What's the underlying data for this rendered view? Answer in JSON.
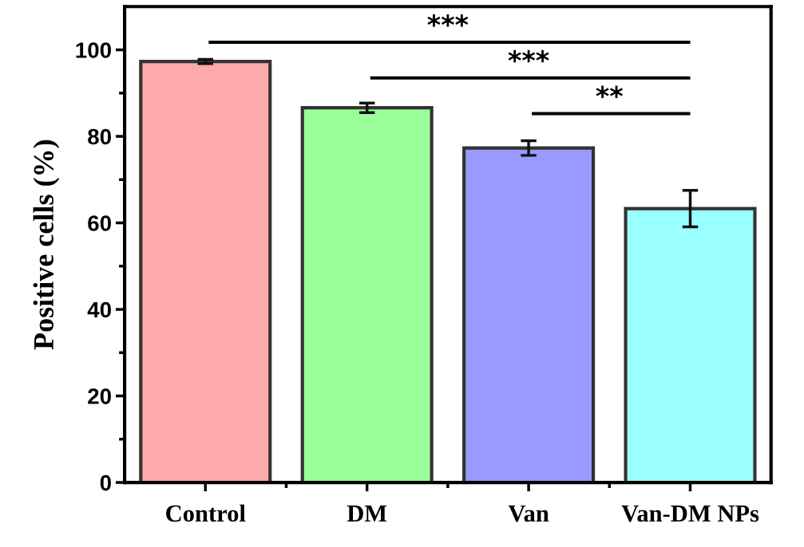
{
  "chart_data": {
    "type": "bar",
    "ylabel": "Positive cells (%)",
    "categories": [
      "Control",
      "DM",
      "Van",
      "Van-DM NPs"
    ],
    "values": [
      97.3,
      86.6,
      77.3,
      63.3
    ],
    "errors": [
      0.5,
      1.1,
      1.7,
      4.2
    ],
    "colors": [
      "#ffaaaa",
      "#99ff99",
      "#9999ff",
      "#99ffff"
    ],
    "ylim": [
      0,
      110
    ],
    "yticks": [
      0,
      {
        "value": 10,
        "label": null
      },
      20,
      {
        "value": 30,
        "label": null
      },
      40,
      {
        "value": 50,
        "label": null
      },
      60,
      {
        "value": 70,
        "label": null
      },
      80,
      {
        "value": 90,
        "label": null
      },
      100
    ],
    "grid": false,
    "legend": false,
    "annotations": [
      "***",
      "***",
      "**"
    ]
  }
}
